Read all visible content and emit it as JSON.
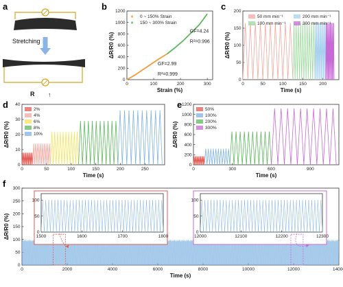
{
  "panels": {
    "a": {
      "label": "a",
      "stretching": "Stretching",
      "r_label": "R",
      "arrow": "↑"
    }
  },
  "colors": {
    "orange": "#f39a3c",
    "green": "#5cb85c",
    "blue": "#7fb3e0",
    "lightblue": "#a8d1f0",
    "pink": "#f3a8a0",
    "red": "#e25a54",
    "yellow": "#f5e35a",
    "purple": "#c86ad6",
    "lightgreen": "#9ad99a"
  },
  "chart_data": [
    {
      "id": "b",
      "label": "b",
      "type": "line",
      "xlabel": "Strain (%)",
      "ylabel": "ΔR/R0 (%)",
      "xlim": [
        0,
        320
      ],
      "ylim": [
        0,
        1200
      ],
      "xticks": [
        0,
        100,
        200,
        300
      ],
      "yticks": [
        0,
        200,
        400,
        600,
        800,
        1000,
        1200
      ],
      "series": [
        {
          "name": "0 ~ 150% Strain",
          "x": [
            0,
            30,
            60,
            90,
            120,
            150
          ],
          "y": [
            0,
            80,
            175,
            270,
            365,
            450
          ]
        },
        {
          "name": "150 ~ 300% Strain",
          "x": [
            150,
            180,
            210,
            240,
            270,
            300
          ],
          "y": [
            450,
            560,
            680,
            820,
            960,
            1150
          ]
        }
      ],
      "annotations": [
        {
          "text": "GF=4.24",
          "x": 235,
          "y": 820
        },
        {
          "text": "R²=0.996",
          "x": 235,
          "y": 640
        },
        {
          "text": "GF=2.99",
          "x": 115,
          "y": 250
        },
        {
          "text": "R²=0.999",
          "x": 115,
          "y": 70
        }
      ]
    },
    {
      "id": "c",
      "label": "c",
      "type": "line",
      "xlabel": "Time (s)",
      "ylabel": "ΔR/R0 (%)",
      "xlim": [
        0,
        240
      ],
      "ylim": [
        0,
        200
      ],
      "xticks": [
        0,
        50,
        100,
        150,
        200
      ],
      "yticks": [
        0,
        50,
        100,
        150,
        200
      ],
      "legend": [
        "50 mm min⁻¹",
        "200 mm min⁻¹",
        "100 mm min⁻¹",
        "300 mm min⁻¹"
      ],
      "segments": [
        {
          "name": "50 mm min⁻¹",
          "start": 0,
          "end": 125,
          "cycles": 10,
          "peak": 165
        },
        {
          "name": "100 mm min⁻¹",
          "start": 125,
          "end": 180,
          "cycles": 10,
          "peak": 165
        },
        {
          "name": "200 mm min⁻¹",
          "start": 180,
          "end": 207,
          "cycles": 10,
          "peak": 165
        },
        {
          "name": "300 mm min⁻¹",
          "start": 207,
          "end": 228,
          "cycles": 10,
          "peak": 165
        }
      ]
    },
    {
      "id": "d",
      "label": "d",
      "type": "line",
      "xlabel": "Time (s)",
      "ylabel": "ΔR/R0 (%)",
      "xlim": [
        0,
        290
      ],
      "ylim": [
        0,
        40
      ],
      "xticks": [
        0,
        50,
        100,
        150,
        200,
        250
      ],
      "yticks": [
        0,
        10,
        20,
        30,
        40
      ],
      "legend": [
        "2%",
        "4%",
        "6%",
        "8%",
        "10%"
      ],
      "segments": [
        {
          "name": "2%",
          "start": 0,
          "end": 22,
          "cycles": 10,
          "peak": 8
        },
        {
          "name": "4%",
          "start": 22,
          "end": 58,
          "cycles": 10,
          "peak": 14
        },
        {
          "name": "6%",
          "start": 58,
          "end": 115,
          "cycles": 10,
          "peak": 22
        },
        {
          "name": "8%",
          "start": 115,
          "end": 195,
          "cycles": 10,
          "peak": 29
        },
        {
          "name": "10%",
          "start": 195,
          "end": 285,
          "cycles": 10,
          "peak": 36
        }
      ]
    },
    {
      "id": "e",
      "label": "e",
      "type": "line",
      "xlabel": "Time (s)",
      "ylabel": "ΔR/R0 (%)",
      "xlim": [
        0,
        1120
      ],
      "ylim": [
        0,
        1200
      ],
      "xticks": [
        0,
        300,
        600,
        900
      ],
      "yticks": [
        0,
        200,
        400,
        600,
        800,
        1000,
        1200
      ],
      "legend": [
        "50%",
        "100%",
        "200%",
        "300%"
      ],
      "segments": [
        {
          "name": "50%",
          "start": 0,
          "end": 85,
          "cycles": 10,
          "peak": 170
        },
        {
          "name": "100%",
          "start": 85,
          "end": 280,
          "cycles": 10,
          "peak": 320
        },
        {
          "name": "200%",
          "start": 280,
          "end": 600,
          "cycles": 10,
          "peak": 660
        },
        {
          "name": "300%",
          "start": 600,
          "end": 1100,
          "cycles": 10,
          "peak": 1120
        }
      ]
    },
    {
      "id": "f",
      "label": "f",
      "type": "line",
      "xlabel": "Time (s)",
      "ylabel": "ΔR/R0 (%)",
      "xlim": [
        0,
        14000
      ],
      "ylim": [
        0,
        300
      ],
      "xticks": [
        0,
        2000,
        4000,
        6000,
        8000,
        10000,
        12000,
        14000
      ],
      "yticks": [
        0,
        50,
        100,
        150,
        200,
        250,
        300
      ],
      "series": [
        {
          "name": "",
          "peak": 100
        }
      ],
      "insets": [
        {
          "xlim": [
            1500,
            1800
          ],
          "xticks": [
            1500,
            1600,
            1700,
            1800
          ],
          "yticks": [
            0,
            50,
            100
          ],
          "ylim": [
            0,
            120
          ],
          "peak": 100,
          "cycles": 40,
          "frame_color": "#e25a54"
        },
        {
          "xlim": [
            12000,
            12300
          ],
          "xticks": [
            12000,
            12100,
            12200,
            12300
          ],
          "yticks": [
            0,
            50,
            100
          ],
          "ylim": [
            0,
            120
          ],
          "peak": 100,
          "cycles": 40,
          "frame_color": "#c86ad6"
        }
      ]
    }
  ]
}
